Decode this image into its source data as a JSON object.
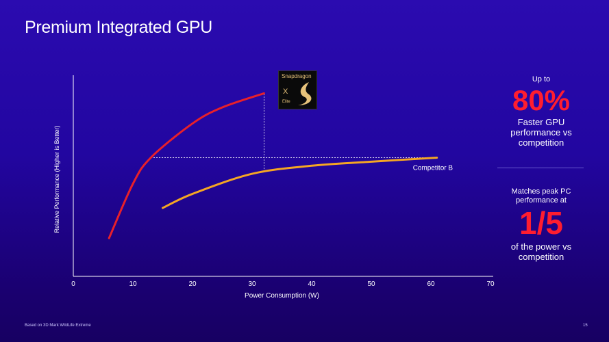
{
  "title": "Premium Integrated GPU",
  "chart_data": {
    "type": "line",
    "xlabel": "Power Consumption (W)",
    "ylabel": "Relative Performance  (Higher is Better)",
    "xlim": [
      0,
      70
    ],
    "ylim": [
      0,
      100
    ],
    "xticks": [
      0,
      10,
      20,
      30,
      40,
      50,
      60,
      70
    ],
    "grid": false,
    "series": [
      {
        "name": "Snapdragon X Elite",
        "color": "#e8202a",
        "x": [
          6,
          10,
          13,
          20,
          25,
          32
        ],
        "y": [
          19,
          46,
          59,
          76,
          84,
          91
        ]
      },
      {
        "name": "Competitor B",
        "color": "#f5a623",
        "x": [
          15,
          20,
          30,
          40,
          50,
          61
        ],
        "y": [
          34,
          41,
          51,
          55,
          57,
          59
        ]
      }
    ],
    "annotations": {
      "hline_y": 59,
      "hline_x": [
        13,
        61
      ],
      "vline_x": 32,
      "vline_y": [
        52,
        91
      ]
    }
  },
  "logo": {
    "brand": "Snapdragon",
    "model": "X",
    "tier": "Elite"
  },
  "callouts": [
    {
      "pre": "Up to",
      "big": "80%",
      "post": "Faster GPU performance vs competition"
    },
    {
      "pre": "Matches peak PC performance at",
      "big": "1/5",
      "post": "of the power vs competition"
    }
  ],
  "footnote": "Based on 3D Mark WildLife Extreme",
  "page": "15"
}
